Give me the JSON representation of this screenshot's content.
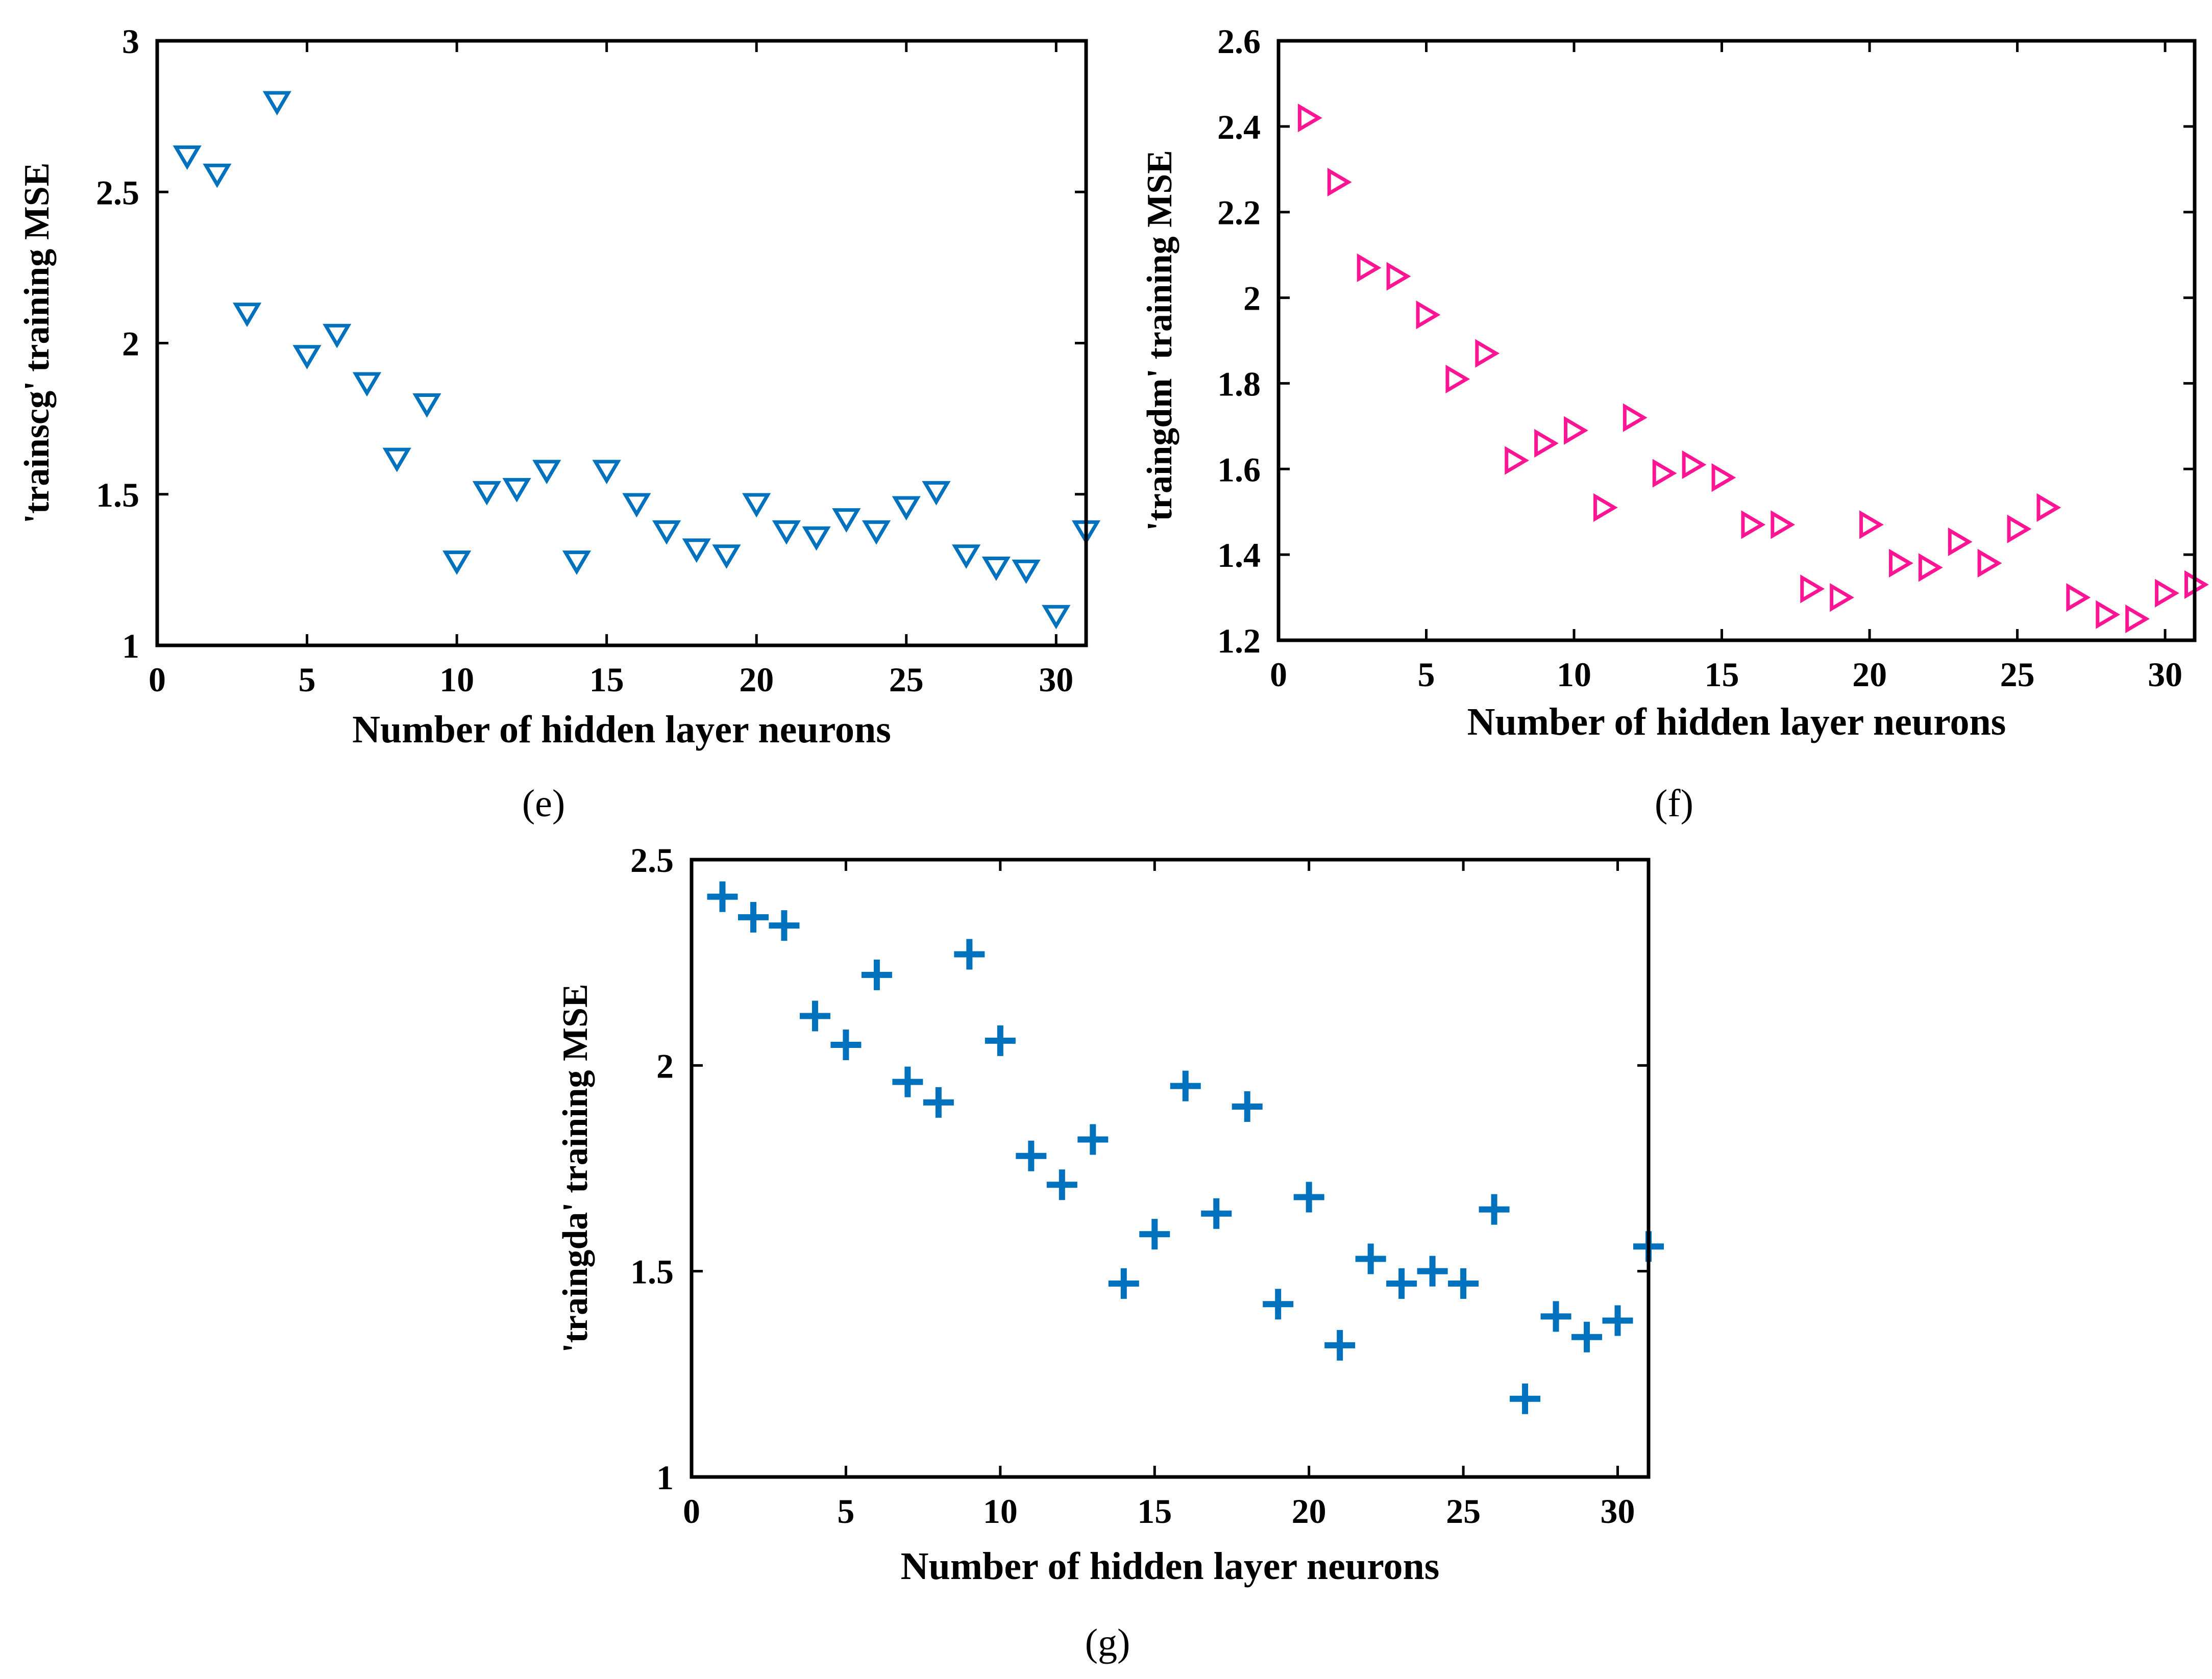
{
  "colors": {
    "blue": "#0072BD",
    "magenta": "#FF1493",
    "axis": "#000000"
  },
  "chart_data": [
    {
      "id": "e",
      "type": "scatter",
      "panel_label": "(e)",
      "title": "",
      "xlabel": "Number of hidden layer neurons",
      "ylabel": "'trainscg' training MSE",
      "xlim": [
        0,
        31
      ],
      "ylim": [
        1,
        3
      ],
      "xticks": [
        0,
        5,
        10,
        15,
        20,
        25,
        30
      ],
      "yticks": [
        1,
        1.5,
        2,
        2.5,
        3
      ],
      "marker": "triangle-down",
      "color": "#0072BD",
      "x": [
        1,
        2,
        3,
        4,
        5,
        6,
        7,
        8,
        9,
        10,
        11,
        12,
        13,
        14,
        15,
        16,
        17,
        18,
        19,
        20,
        21,
        22,
        23,
        24,
        25,
        26,
        27,
        28,
        29,
        30,
        31
      ],
      "y": [
        2.62,
        2.56,
        2.1,
        2.8,
        1.96,
        2.03,
        1.87,
        1.62,
        1.8,
        1.28,
        1.51,
        1.52,
        1.58,
        1.28,
        1.58,
        1.47,
        1.38,
        1.32,
        1.3,
        1.47,
        1.38,
        1.36,
        1.42,
        1.38,
        1.46,
        1.51,
        1.3,
        1.26,
        1.25,
        1.1,
        1.38
      ]
    },
    {
      "id": "f",
      "type": "scatter",
      "panel_label": "(f)",
      "title": "",
      "xlabel": "Number of hidden layer neurons",
      "ylabel": "'traingdm' training MSE",
      "xlim": [
        0,
        31
      ],
      "ylim": [
        1.2,
        2.6
      ],
      "xticks": [
        0,
        5,
        10,
        15,
        20,
        25,
        30
      ],
      "yticks": [
        1.2,
        1.4,
        1.6,
        1.8,
        2,
        2.2,
        2.4,
        2.6
      ],
      "marker": "triangle-right",
      "color": "#FF1493",
      "x": [
        1,
        2,
        3,
        4,
        5,
        6,
        7,
        8,
        9,
        10,
        11,
        12,
        13,
        14,
        15,
        16,
        17,
        18,
        19,
        20,
        21,
        22,
        23,
        24,
        25,
        26,
        27,
        28,
        29,
        30,
        31
      ],
      "y": [
        2.42,
        2.27,
        2.07,
        2.05,
        1.96,
        1.81,
        1.87,
        1.62,
        1.66,
        1.69,
        1.51,
        1.72,
        1.59,
        1.61,
        1.58,
        1.47,
        1.47,
        1.32,
        1.3,
        1.47,
        1.38,
        1.37,
        1.43,
        1.38,
        1.46,
        1.51,
        1.3,
        1.26,
        1.25,
        1.31,
        1.33
      ]
    },
    {
      "id": "g",
      "type": "scatter",
      "panel_label": "(g)",
      "title": "",
      "xlabel": "Number of hidden layer neurons",
      "ylabel": "'traingda' training MSE",
      "xlim": [
        0,
        31
      ],
      "ylim": [
        1,
        2.5
      ],
      "xticks": [
        0,
        5,
        10,
        15,
        20,
        25,
        30
      ],
      "yticks": [
        1,
        1.5,
        2,
        2.5
      ],
      "marker": "plus",
      "color": "#0072BD",
      "x": [
        1,
        2,
        3,
        4,
        5,
        6,
        7,
        8,
        9,
        10,
        11,
        12,
        13,
        14,
        15,
        16,
        17,
        18,
        19,
        20,
        21,
        22,
        23,
        24,
        25,
        26,
        27,
        28,
        29,
        30,
        31
      ],
      "y": [
        2.41,
        2.36,
        2.34,
        2.12,
        2.05,
        2.22,
        1.96,
        1.91,
        2.27,
        2.06,
        1.78,
        1.71,
        1.82,
        1.47,
        1.59,
        1.95,
        1.64,
        1.9,
        1.42,
        1.68,
        1.32,
        1.53,
        1.47,
        1.5,
        1.47,
        1.65,
        1.19,
        1.39,
        1.34,
        1.38,
        1.56
      ]
    }
  ]
}
